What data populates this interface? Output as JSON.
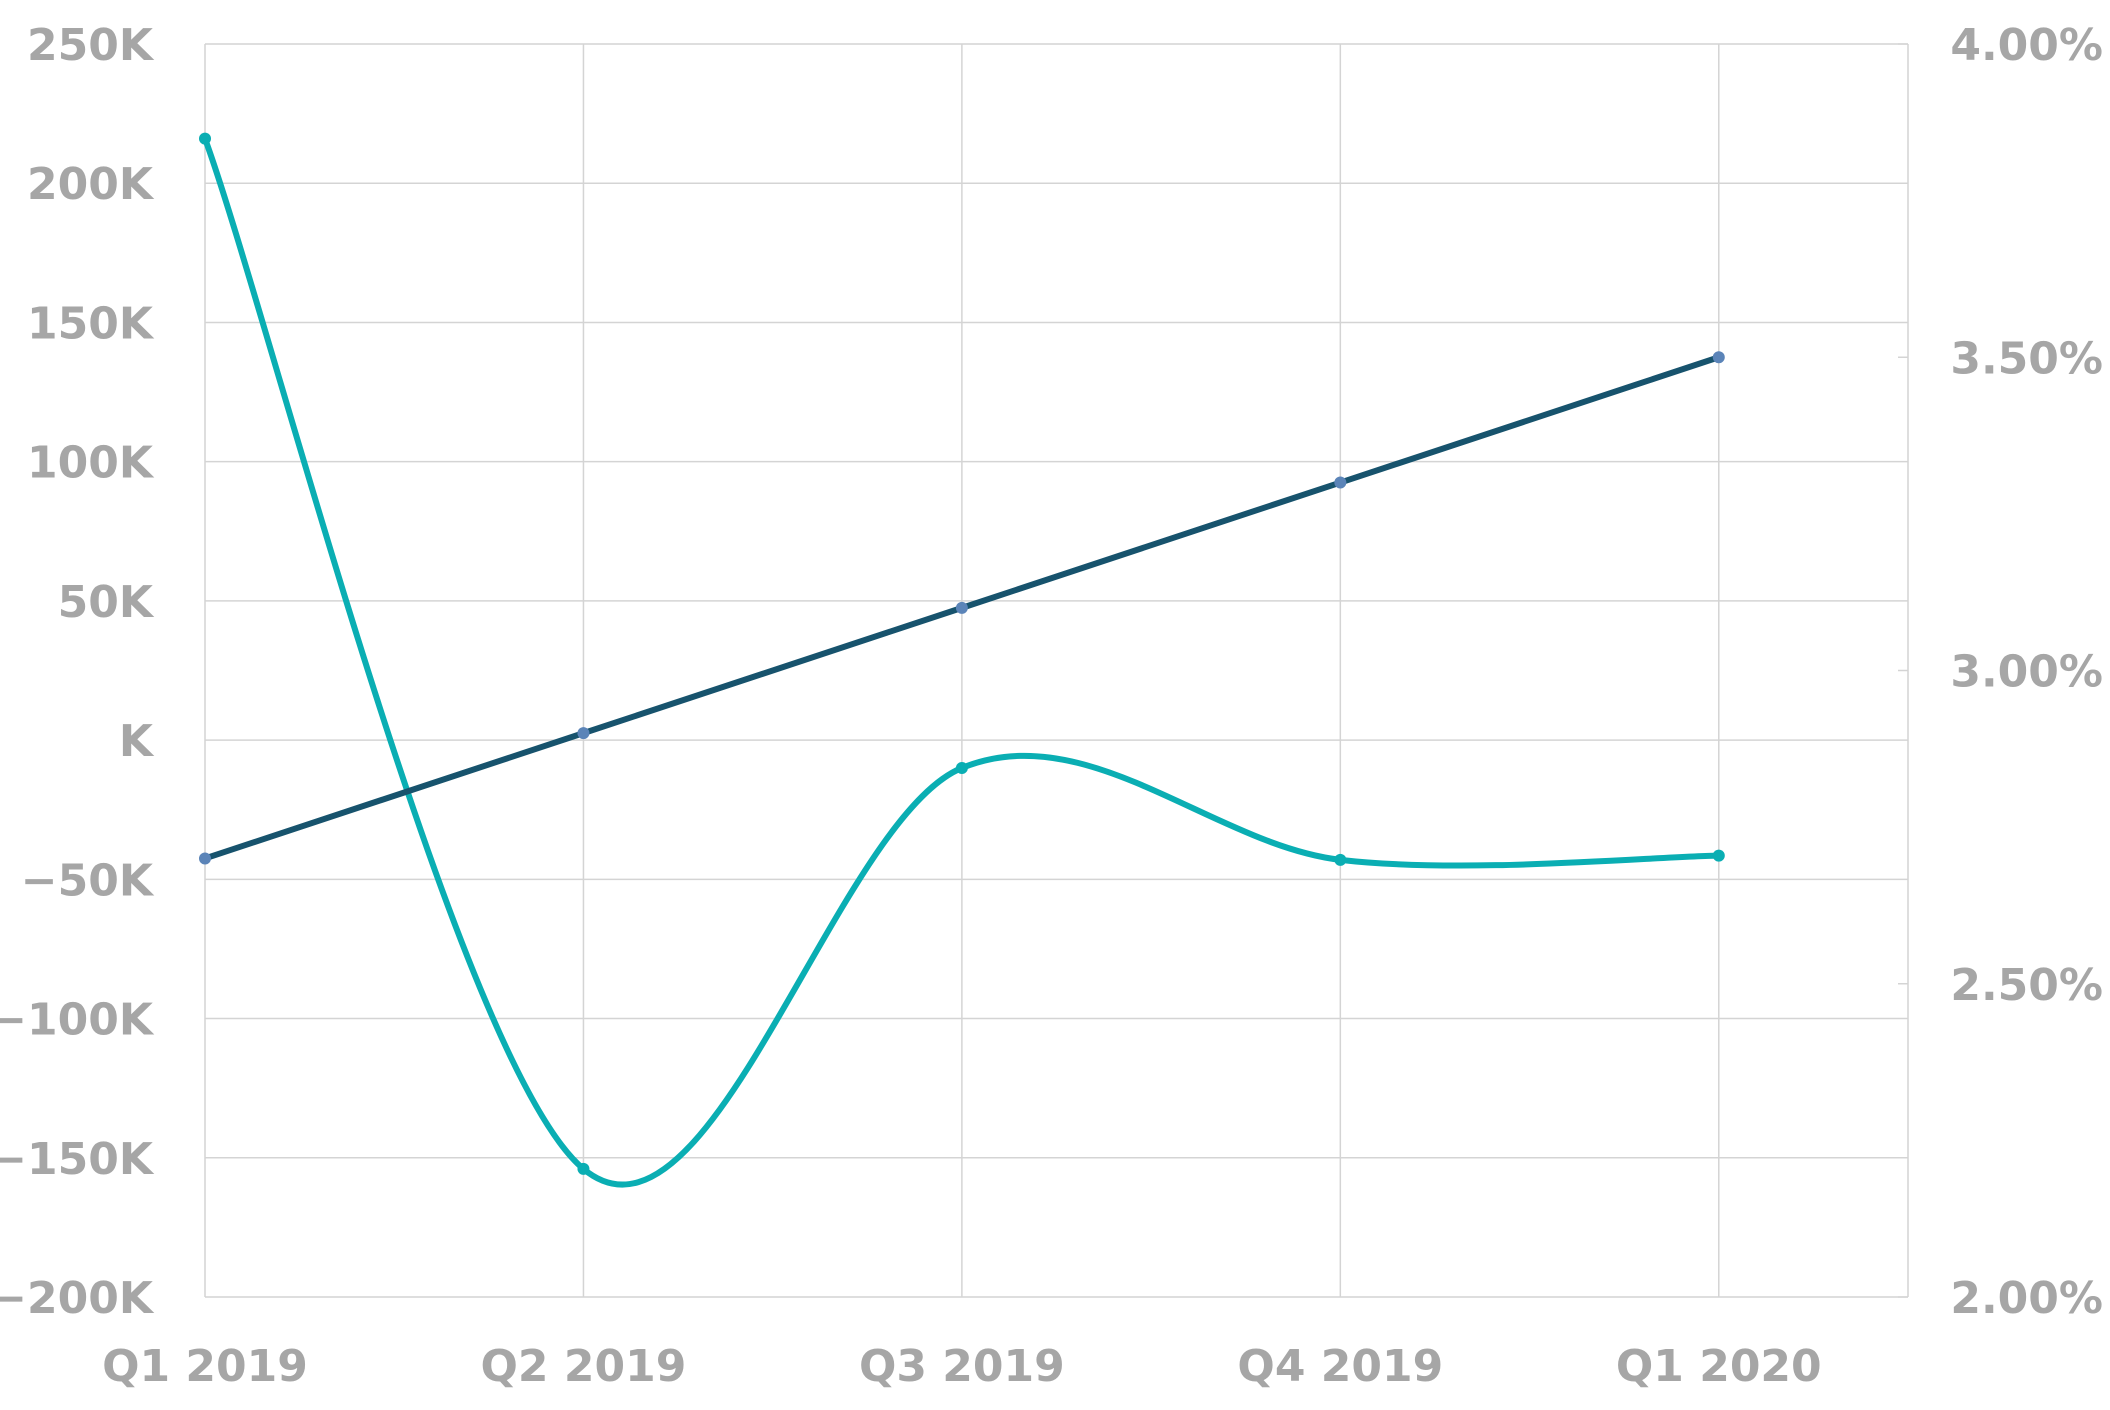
{
  "chart_data": {
    "type": "line",
    "categories": [
      "Q1 2019",
      "Q2 2019",
      "Q3 2019",
      "Q4 2019",
      "Q1 2020"
    ],
    "y_left": {
      "ylim": [
        -200000,
        250000
      ],
      "ticks": [
        250000,
        200000,
        150000,
        100000,
        50000,
        0,
        -50000,
        -100000,
        -150000,
        -200000
      ],
      "tick_labels": [
        "250K",
        "200K",
        "150K",
        "100K",
        "50K",
        "K",
        "−50K",
        "−100K",
        "−150K",
        "−200K"
      ]
    },
    "y_right": {
      "ylim": [
        0.02,
        0.04
      ],
      "ticks": [
        0.04,
        0.035,
        0.03,
        0.025,
        0.02
      ],
      "tick_labels": [
        "4.00%",
        "3.50%",
        "3.00%",
        "2.50%",
        "2.00%"
      ]
    },
    "series": [
      {
        "axis": "left",
        "smooth": true,
        "color": "#0aaeb3",
        "marker_color": "#0aaeb3",
        "values": [
          216000,
          -154000,
          -10000,
          -43000,
          -41500
        ]
      },
      {
        "axis": "right",
        "smooth": false,
        "color": "#17536d",
        "marker_color": "#5b84b8",
        "values": [
          0.027,
          0.029,
          0.031,
          0.033,
          0.035
        ]
      }
    ],
    "grid": true,
    "legend": "none"
  }
}
